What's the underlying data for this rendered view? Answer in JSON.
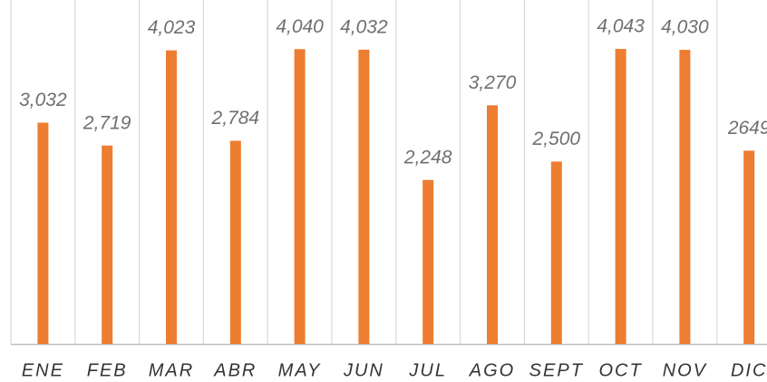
{
  "chart_data": {
    "type": "bar",
    "categories": [
      "ENE",
      "FEB",
      "MAR",
      "ABR",
      "MAY",
      "JUN",
      "JUL",
      "AGO",
      "SEPT",
      "OCT",
      "NOV",
      "DIC"
    ],
    "values": [
      3032,
      2719,
      4023,
      2784,
      4040,
      4032,
      2248,
      3270,
      2500,
      4043,
      4030,
      2649
    ],
    "value_labels": [
      "3,032",
      "2,719",
      "4,023",
      "2,784",
      "4,040",
      "4,032",
      "2,248",
      "3,270",
      "2,500",
      "4,043",
      "4,030",
      "2649"
    ],
    "color": "#ed7d31",
    "ylim": [
      0,
      4713
    ]
  }
}
